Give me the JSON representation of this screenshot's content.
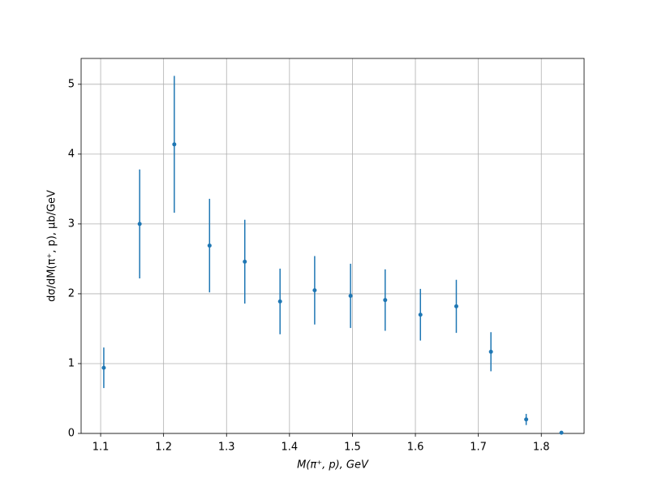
{
  "chart_data": {
    "type": "errorbar",
    "x_label": "M(π⁺, p), GeV",
    "y_label": "dσ/dM(π⁺, p), μb/GeV",
    "x": [
      1.105,
      1.162,
      1.217,
      1.273,
      1.329,
      1.385,
      1.44,
      1.497,
      1.552,
      1.608,
      1.665,
      1.72,
      1.776,
      1.832
    ],
    "values": [
      0.94,
      3.0,
      4.14,
      2.69,
      2.46,
      1.89,
      2.05,
      1.97,
      1.91,
      1.7,
      1.82,
      1.17,
      0.2,
      0.01
    ],
    "errors": [
      0.29,
      0.78,
      0.98,
      0.67,
      0.6,
      0.47,
      0.49,
      0.46,
      0.44,
      0.37,
      0.38,
      0.28,
      0.08,
      0.01
    ],
    "color": "#1f77b4",
    "xlim": [
      1.069,
      1.868
    ],
    "xticks": [
      1.1,
      1.2,
      1.3,
      1.4,
      1.5,
      1.6,
      1.7,
      1.8
    ],
    "ylim": [
      0,
      5.37
    ],
    "yticks": [
      0,
      1,
      2,
      3,
      4,
      5
    ],
    "grid": true
  }
}
